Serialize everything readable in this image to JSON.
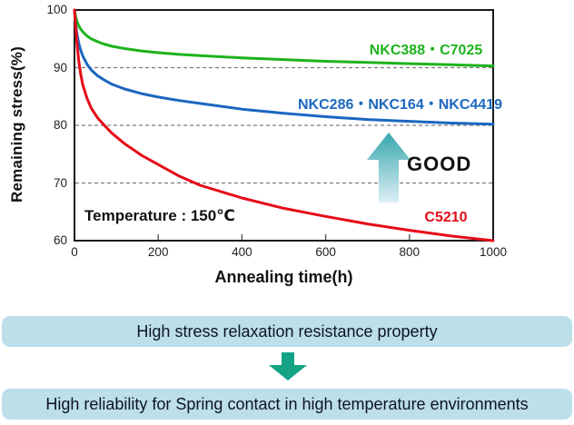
{
  "chart_data": {
    "type": "line",
    "title": "",
    "xlabel": "Annealing time(h)",
    "ylabel": "Remaining stress(%)",
    "xlim": [
      0,
      1000
    ],
    "ylim": [
      60,
      100
    ],
    "x_ticks": [
      0,
      200,
      400,
      600,
      800,
      1000
    ],
    "y_ticks": [
      100,
      90,
      80,
      70,
      60
    ],
    "gridlines_y": [
      90,
      80,
      70
    ],
    "grid_style": "dashed-horizontal",
    "legend_position": "inline labels beside curves",
    "x": [
      0,
      3,
      6,
      10,
      15,
      20,
      30,
      40,
      55,
      70,
      90,
      120,
      160,
      200,
      250,
      300,
      400,
      500,
      600,
      700,
      800,
      900,
      1000
    ],
    "series": [
      {
        "name": "NKC388・C7025",
        "color": "#1db31d",
        "values": [
          100,
          98.8,
          98.0,
          97.3,
          96.7,
          96.2,
          95.5,
          95.0,
          94.5,
          94.1,
          93.7,
          93.3,
          92.9,
          92.6,
          92.3,
          92.1,
          91.7,
          91.4,
          91.1,
          90.9,
          90.7,
          90.5,
          90.3
        ]
      },
      {
        "name": "NKC286・NKC164・NKC4419",
        "color": "#1b67c0",
        "values": [
          100,
          97.5,
          95.8,
          94.3,
          93.0,
          92.0,
          90.6,
          89.6,
          88.6,
          87.9,
          87.1,
          86.3,
          85.5,
          84.9,
          84.3,
          83.8,
          82.8,
          82.1,
          81.5,
          81.0,
          80.7,
          80.4,
          80.2
        ]
      },
      {
        "name": "C5210",
        "color": "#e60b17",
        "values": [
          100,
          97.0,
          94.2,
          91.3,
          88.8,
          87.0,
          84.7,
          83.0,
          81.3,
          80.1,
          78.6,
          76.8,
          74.8,
          73.2,
          71.2,
          69.6,
          67.4,
          65.6,
          64.2,
          62.9,
          61.8,
          60.8,
          60.0
        ]
      }
    ],
    "annotations": {
      "temperature": "Temperature : 150℃",
      "good": "GOOD"
    }
  },
  "banners": {
    "top": "High stress relaxation resistance property",
    "bottom": "High reliability for Spring contact in high temperature environments"
  },
  "colors": {
    "good_arrow_top": "#38a7ae",
    "good_arrow_bottom": "#dceff5",
    "down_arrow": "#14a384",
    "banner_background": "#bcdfe9",
    "gridline": "#7d7d7d",
    "axis_border": "#1a1a1a"
  }
}
